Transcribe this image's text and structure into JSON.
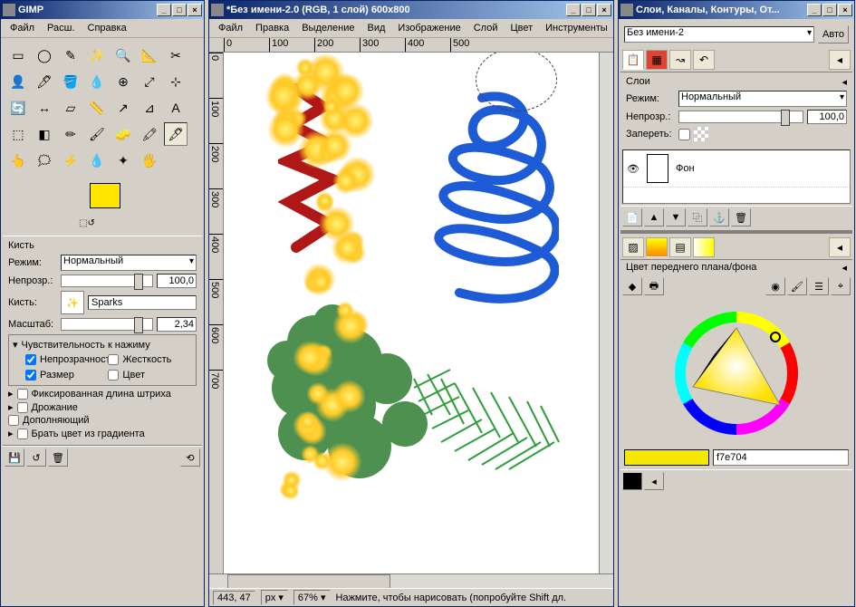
{
  "toolbox": {
    "title": "GIMP",
    "menu": [
      "Файл",
      "Расш.",
      "Справка"
    ],
    "tools": [
      "▭",
      "◯",
      "✎",
      "✨",
      "🔍",
      "📐",
      "✂",
      "👤",
      "🖊",
      "🪣",
      "💧",
      "⊕",
      "⤢",
      "⊹",
      "🔄",
      "↔",
      "▱",
      "📏",
      "↗",
      "⊿",
      "A",
      "⬚",
      "◧",
      "✏",
      "🖌",
      "🧽",
      "🖍",
      "🖋",
      "👆",
      "🗯",
      "⚡",
      "💧",
      "✦",
      "🖐"
    ],
    "fg_color": "#ffe600",
    "brush_section": "Кисть",
    "mode_label": "Режим:",
    "mode_value": "Нормальный",
    "opacity_label": "Непрозр.:",
    "opacity_value": "100,0",
    "brush_label": "Кисть:",
    "brush_name": "Sparks",
    "scale_label": "Масштаб:",
    "scale_value": "2,34",
    "pressure_title": "Чувствительность к нажиму",
    "pressure_opts": {
      "opacity": "Непрозрачность",
      "hardness": "Жесткость",
      "size": "Размер",
      "color": "Цвет"
    },
    "pressure_check": {
      "opacity": true,
      "hardness": false,
      "size": true,
      "color": false
    },
    "opts": {
      "fixed_len": "Фиксированная длина штриха",
      "jitter": "Дрожание",
      "additive": "Дополняющий",
      "grad": "Брать цвет из градиента"
    }
  },
  "canvas": {
    "title": "*Без имени-2.0 (RGB, 1 слой) 600x800",
    "menu": [
      "Файл",
      "Правка",
      "Выделение",
      "Вид",
      "Изображение",
      "Слой",
      "Цвет",
      "Инструменты"
    ],
    "ruler_h": [
      "0",
      "100",
      "200",
      "300",
      "400",
      "500"
    ],
    "ruler_v": [
      "0",
      "100",
      "200",
      "300",
      "400",
      "500",
      "600",
      "700"
    ],
    "status_coords": "443, 47",
    "status_unit": "px",
    "status_zoom": "67%",
    "status_hint": "Нажмите, чтобы нарисовать (попробуйте Shift дл.",
    "strokes": {
      "spiral_color": "#1e5bd6",
      "red_color": "#b01818",
      "green_color": "#2e7d32",
      "hatch_color": "#2e9e3a",
      "spark_color": "#ffb300"
    }
  },
  "layers": {
    "title": "Слои, Каналы, Контуры, От...",
    "image_select": "Без имени-2",
    "auto": "Авто",
    "section": "Слои",
    "mode_label": "Режим:",
    "mode_value": "Нормальный",
    "opacity_label": "Непрозр.:",
    "opacity_value": "100,0",
    "lock_label": "Запереть:",
    "layer_name": "Фон",
    "color_section": "Цвет переднего плана/фона",
    "hex": "f7e704",
    "swatch_color": "#f7e704"
  }
}
